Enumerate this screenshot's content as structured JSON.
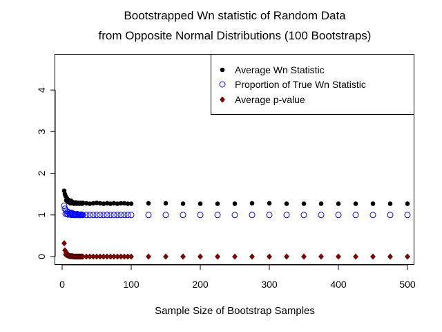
{
  "chart_data": {
    "type": "scatter",
    "title_line1": "Bootstrapped Wn statistic of Random Data",
    "title_line2": "from Opposite Normal Distributions (100 Bootstraps)",
    "xlabel": "Sample Size of Bootstrap Samples",
    "ylabel": "",
    "xlim": [
      -10,
      510
    ],
    "ylim": [
      -0.2,
      4.85
    ],
    "xticks": [
      0,
      100,
      200,
      300,
      400,
      500
    ],
    "yticks": [
      0,
      1,
      2,
      3,
      4
    ],
    "legend_position": "top-right",
    "series": [
      {
        "name": "Average Wn Statistic",
        "marker": "filled-circle",
        "color": "#000000",
        "x": [
          3,
          4,
          5,
          6,
          7,
          8,
          9,
          10,
          11,
          12,
          13,
          14,
          15,
          16,
          17,
          18,
          19,
          20,
          21,
          22,
          23,
          24,
          25,
          26,
          27,
          28,
          29,
          30,
          35,
          40,
          45,
          50,
          55,
          60,
          65,
          70,
          75,
          80,
          85,
          90,
          95,
          100,
          125,
          150,
          175,
          200,
          225,
          250,
          275,
          300,
          325,
          350,
          375,
          400,
          425,
          450,
          475,
          500
        ],
        "y": [
          1.58,
          1.5,
          1.45,
          1.35,
          1.4,
          1.32,
          1.36,
          1.3,
          1.33,
          1.28,
          1.34,
          1.29,
          1.31,
          1.3,
          1.27,
          1.29,
          1.28,
          1.3,
          1.27,
          1.29,
          1.28,
          1.29,
          1.27,
          1.28,
          1.29,
          1.28,
          1.27,
          1.29,
          1.28,
          1.27,
          1.28,
          1.29,
          1.28,
          1.27,
          1.28,
          1.27,
          1.28,
          1.27,
          1.28,
          1.28,
          1.27,
          1.27,
          1.28,
          1.28,
          1.27,
          1.27,
          1.27,
          1.27,
          1.28,
          1.28,
          1.27,
          1.27,
          1.27,
          1.27,
          1.27,
          1.27,
          1.27,
          1.27
        ]
      },
      {
        "name": "Proportion of True Wn Statistic",
        "marker": "open-circle",
        "color": "#0000ff",
        "x": [
          3,
          4,
          5,
          6,
          7,
          8,
          9,
          10,
          11,
          12,
          13,
          14,
          15,
          16,
          17,
          18,
          19,
          20,
          21,
          22,
          23,
          24,
          25,
          26,
          27,
          28,
          29,
          30,
          35,
          40,
          45,
          50,
          55,
          60,
          65,
          70,
          75,
          80,
          85,
          90,
          95,
          100,
          125,
          150,
          175,
          200,
          225,
          250,
          275,
          300,
          325,
          350,
          375,
          400,
          425,
          450,
          475,
          500
        ],
        "y": [
          1.22,
          1.15,
          1.03,
          1.1,
          1.03,
          1.08,
          1.01,
          1.06,
          1.02,
          1.04,
          1.0,
          1.05,
          1.01,
          1.03,
          1.0,
          1.02,
          1.0,
          1.01,
          1.0,
          1.02,
          1.0,
          1.01,
          1.0,
          1.0,
          1.0,
          1.01,
          1.0,
          1.0,
          1.0,
          1.0,
          1.0,
          1.0,
          1.0,
          1.0,
          1.0,
          1.0,
          1.0,
          1.0,
          1.0,
          1.0,
          1.0,
          1.0,
          1.0,
          1.0,
          1.0,
          1.0,
          1.0,
          1.0,
          1.0,
          1.0,
          1.0,
          1.0,
          1.0,
          1.0,
          1.0,
          1.0,
          1.0,
          1.0
        ]
      },
      {
        "name": "Average p-value",
        "marker": "filled-diamond",
        "color": "#8b0000",
        "x": [
          3,
          4,
          5,
          6,
          7,
          8,
          9,
          10,
          11,
          12,
          13,
          14,
          15,
          16,
          17,
          18,
          19,
          20,
          21,
          22,
          23,
          24,
          25,
          26,
          27,
          28,
          29,
          30,
          35,
          40,
          45,
          50,
          55,
          60,
          65,
          70,
          75,
          80,
          85,
          90,
          95,
          100,
          125,
          150,
          175,
          200,
          225,
          250,
          275,
          300,
          325,
          350,
          375,
          400,
          425,
          450,
          475,
          500
        ],
        "y": [
          0.32,
          0.15,
          0.05,
          0.1,
          0.03,
          0.06,
          0.02,
          0.02,
          0.01,
          0.01,
          0.01,
          0.01,
          0.01,
          0.0,
          0.0,
          0.0,
          0.0,
          0.0,
          0.0,
          0.0,
          0.0,
          0.0,
          0.0,
          0.0,
          0.0,
          0.0,
          0.0,
          0.0,
          0.0,
          0.0,
          0.0,
          0.0,
          0.0,
          0.0,
          0.0,
          0.0,
          0.0,
          0.0,
          0.0,
          0.0,
          0.0,
          0.0,
          0.0,
          0.0,
          0.0,
          0.0,
          0.0,
          0.0,
          0.0,
          0.0,
          0.0,
          0.0,
          0.0,
          0.0,
          0.0,
          0.0,
          0.0,
          0.0
        ]
      }
    ]
  }
}
